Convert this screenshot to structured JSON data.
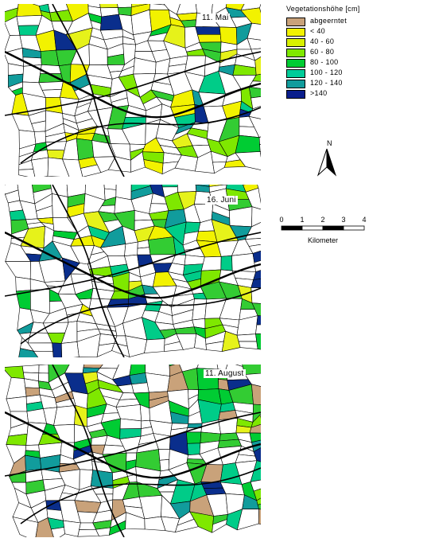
{
  "map": {
    "panels": [
      {
        "title": "11. Mai",
        "seed": 11,
        "colors": [
          "#f2f200",
          "#e6f21a",
          "#7fe800",
          "#33cc33",
          "#00cc33",
          "#00cc88",
          "#119c9c",
          "#0a2e8c"
        ],
        "weights": [
          0.22,
          0.1,
          0.14,
          0.14,
          0.08,
          0.08,
          0.1,
          0.04
        ]
      },
      {
        "title": "16. Juni",
        "seed": 37,
        "colors": [
          "#f2f200",
          "#e6f21a",
          "#7fe800",
          "#33cc33",
          "#00cc33",
          "#00cc88",
          "#119c9c",
          "#0a2e8c"
        ],
        "weights": [
          0.08,
          0.1,
          0.1,
          0.16,
          0.14,
          0.14,
          0.12,
          0.08
        ]
      },
      {
        "title": "11. August",
        "seed": 83,
        "colors": [
          "#c9a27a",
          "#e6f21a",
          "#7fe800",
          "#33cc33",
          "#00cc33",
          "#00cc88",
          "#119c9c",
          "#0a2e8c"
        ],
        "weights": [
          0.26,
          0.04,
          0.12,
          0.14,
          0.1,
          0.08,
          0.08,
          0.1
        ]
      }
    ]
  },
  "legend": {
    "title": "Vegetationshöhe [cm]",
    "items": [
      {
        "label": "abgeerntet",
        "color": "#c9a27a"
      },
      {
        "label": "< 40",
        "color": "#f2f200"
      },
      {
        "label": "40 - 60",
        "color": "#d8f000"
      },
      {
        "label": "60 - 80",
        "color": "#7fe800"
      },
      {
        "label": "80 - 100",
        "color": "#00cc33"
      },
      {
        "label": "100 - 120",
        "color": "#00cc99"
      },
      {
        "label": "120 - 140",
        "color": "#119c9c"
      },
      {
        "label": ">140",
        "color": "#0a1e8c"
      }
    ]
  },
  "north_arrow": {
    "label": "N"
  },
  "scale_bar": {
    "ticks": [
      "0",
      "1",
      "2",
      "3",
      "4"
    ],
    "unit": "Kilometer"
  }
}
